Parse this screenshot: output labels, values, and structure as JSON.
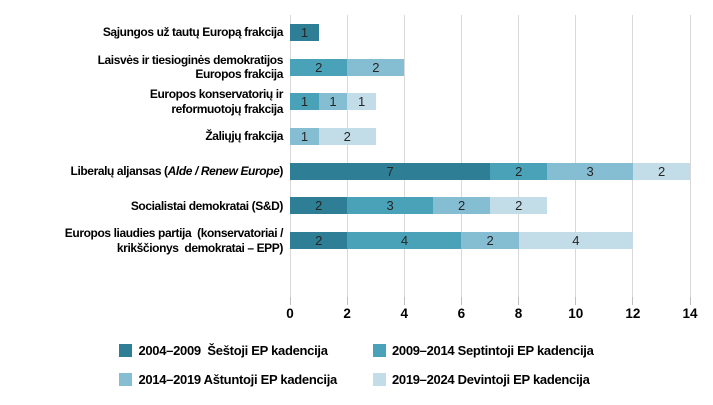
{
  "chart_data": {
    "type": "bar",
    "orientation": "horizontal",
    "stacked": true,
    "grid": true,
    "grid_color": "#d9d9d9",
    "legend_position": "bottom",
    "xlim": [
      0,
      14
    ],
    "xticks": [
      0,
      2,
      4,
      6,
      8,
      10,
      12,
      14
    ],
    "categories": [
      {
        "label": "Sąjungos už tautų Europą frakcija",
        "lines": [
          [
            "Sąjungos už tautų Europą frakcija"
          ]
        ]
      },
      {
        "label": "Laisvės ir tiesioginės demokratijos Europos frakcija",
        "lines": [
          [
            "Laisvės ir tiesioginės demokratijos"
          ],
          [
            "Europos frakcija"
          ]
        ]
      },
      {
        "label": "Europos konservatorių ir reformuotojų frakcija",
        "lines": [
          [
            "Europos konservatorių ir"
          ],
          [
            "reformuotojų frakcija"
          ]
        ]
      },
      {
        "label": "Žaliųjų frakcija",
        "lines": [
          [
            "Žaliųjų frakcija"
          ]
        ]
      },
      {
        "label": "Liberalų aljansas (Alde / Renew Europe)",
        "lines": [
          [
            "Liberalų aljansas (",
            {
              "text": "Alde / Renew Europe",
              "italic": true
            },
            ")"
          ]
        ]
      },
      {
        "label": "Socialistai demokratai (S&D)",
        "lines": [
          [
            "Socialistai demokratai (S&D)"
          ]
        ]
      },
      {
        "label": "Europos liaudies partija  (konservatoriai / krikščionys  demokratai – EPP)",
        "lines": [
          [
            "Europos liaudies partija  (konservatoriai /"
          ],
          [
            "krikščionys  demokratai – EPP)"
          ]
        ]
      }
    ],
    "series": [
      {
        "name": "2004–2009  Šeštoji EP kadencija",
        "color": "#2E7E95",
        "values": [
          1,
          0,
          0,
          0,
          7,
          2,
          2
        ]
      },
      {
        "name": "2009–2014 Septintoji EP kadencija",
        "color": "#4AA2B8",
        "values": [
          0,
          2,
          1,
          0,
          2,
          3,
          4
        ]
      },
      {
        "name": "2014–2019 Aštuntoji EP kadencija",
        "color": "#85BED2",
        "values": [
          0,
          2,
          1,
          1,
          3,
          2,
          2
        ]
      },
      {
        "name": "2019–2024 Devintoji EP kadencija",
        "color": "#C3DDE8",
        "values": [
          0,
          0,
          1,
          2,
          2,
          2,
          4
        ]
      }
    ]
  }
}
